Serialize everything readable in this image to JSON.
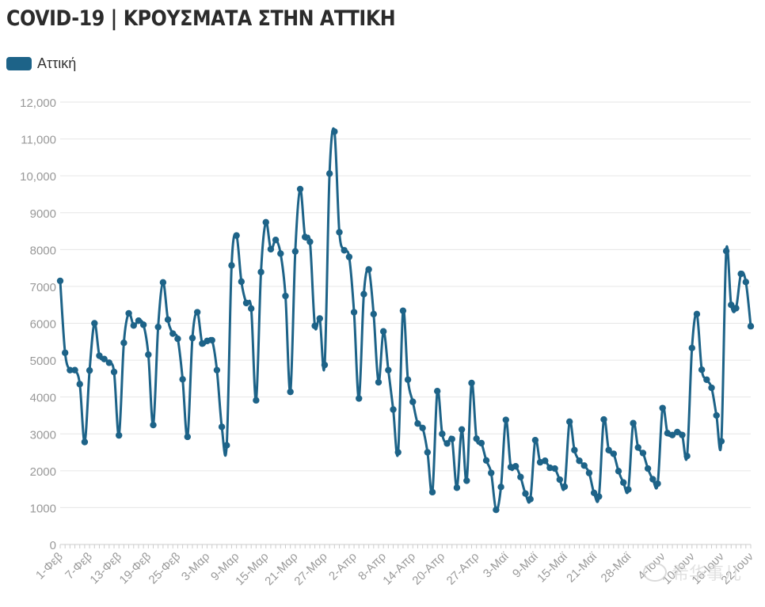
{
  "title": "COVID-19 | ΚΡΟΥΣΜΑΤΑ ΣΤΗΝ ΑΤΤΙΚΗ",
  "colors": {
    "series": "#1d6388",
    "grid": "#e6e6e6",
    "axis_text": "#999999",
    "title": "#2b2b2b"
  },
  "watermark": "希华事儿",
  "chart_data": {
    "type": "line",
    "series": [
      {
        "name": "Αττική",
        "values": [
          7150,
          5200,
          4730,
          4730,
          4350,
          2780,
          4720,
          6000,
          5120,
          5030,
          4930,
          4680,
          2960,
          5470,
          6270,
          5940,
          6070,
          5960,
          5150,
          3240,
          5900,
          7110,
          6100,
          5720,
          5580,
          4480,
          2920,
          5600,
          6300,
          5450,
          5520,
          5540,
          4730,
          3190,
          2690,
          7570,
          8380,
          7130,
          6550,
          6400,
          3910,
          7390,
          8740,
          8010,
          8260,
          7890,
          6740,
          4140,
          7950,
          9640,
          8340,
          8210,
          5930,
          6130,
          4870,
          10060,
          11200,
          8470,
          7980,
          7800,
          6300,
          3960,
          6790,
          7460,
          6250,
          4400,
          5780,
          4730,
          3660,
          2500,
          6340,
          4470,
          3870,
          3280,
          3160,
          2500,
          1420,
          4160,
          3000,
          2740,
          2860,
          1540,
          3120,
          1730,
          4380,
          2870,
          2750,
          2280,
          1940,
          940,
          1560,
          3380,
          2100,
          2120,
          1830,
          1380,
          1230,
          2830,
          2230,
          2270,
          2080,
          2060,
          1760,
          1570,
          3330,
          2560,
          2270,
          2140,
          1940,
          1400,
          1300,
          3390,
          2560,
          2460,
          1990,
          1680,
          1490,
          3290,
          2630,
          2480,
          2060,
          1770,
          1650,
          3700,
          3020,
          2970,
          3050,
          2970,
          2400,
          5330,
          6250,
          4740,
          4470,
          4250,
          3500,
          2800,
          7960,
          6500,
          6410,
          7340,
          7120,
          5920
        ]
      }
    ],
    "x_start": "1-Φεβ",
    "x_ticks": [
      "1-Φεβ",
      "7-Φεβ",
      "13-Φεβ",
      "19-Φεβ",
      "25-Φεβ",
      "3-Μαρ",
      "9-Μαρ",
      "15-Μαρ",
      "21-Μαρ",
      "27-Μαρ",
      "2-Απρ",
      "8-Απρ",
      "14-Απρ",
      "20-Απρ",
      "27-Απρ",
      "3-Μαϊ",
      "9-Μαϊ",
      "15-Μαϊ",
      "21-Μαϊ",
      "28-Μαϊ",
      "4-Ιουν",
      "10-Ιουν",
      "16-Ιουν",
      "22-Ιουν"
    ],
    "x_tick_index": [
      0,
      6,
      12,
      18,
      24,
      30,
      36,
      42,
      48,
      54,
      60,
      66,
      72,
      78,
      85,
      91,
      97,
      103,
      109,
      116,
      123,
      129,
      135,
      141
    ],
    "y_ticks": [
      "0",
      "1000",
      "2000",
      "3000",
      "4000",
      "5000",
      "6000",
      "7000",
      "8000",
      "9000",
      "10,000",
      "11,000",
      "12,000"
    ],
    "ylim": [
      0,
      12000
    ],
    "grid": true,
    "legend": "top-left"
  }
}
